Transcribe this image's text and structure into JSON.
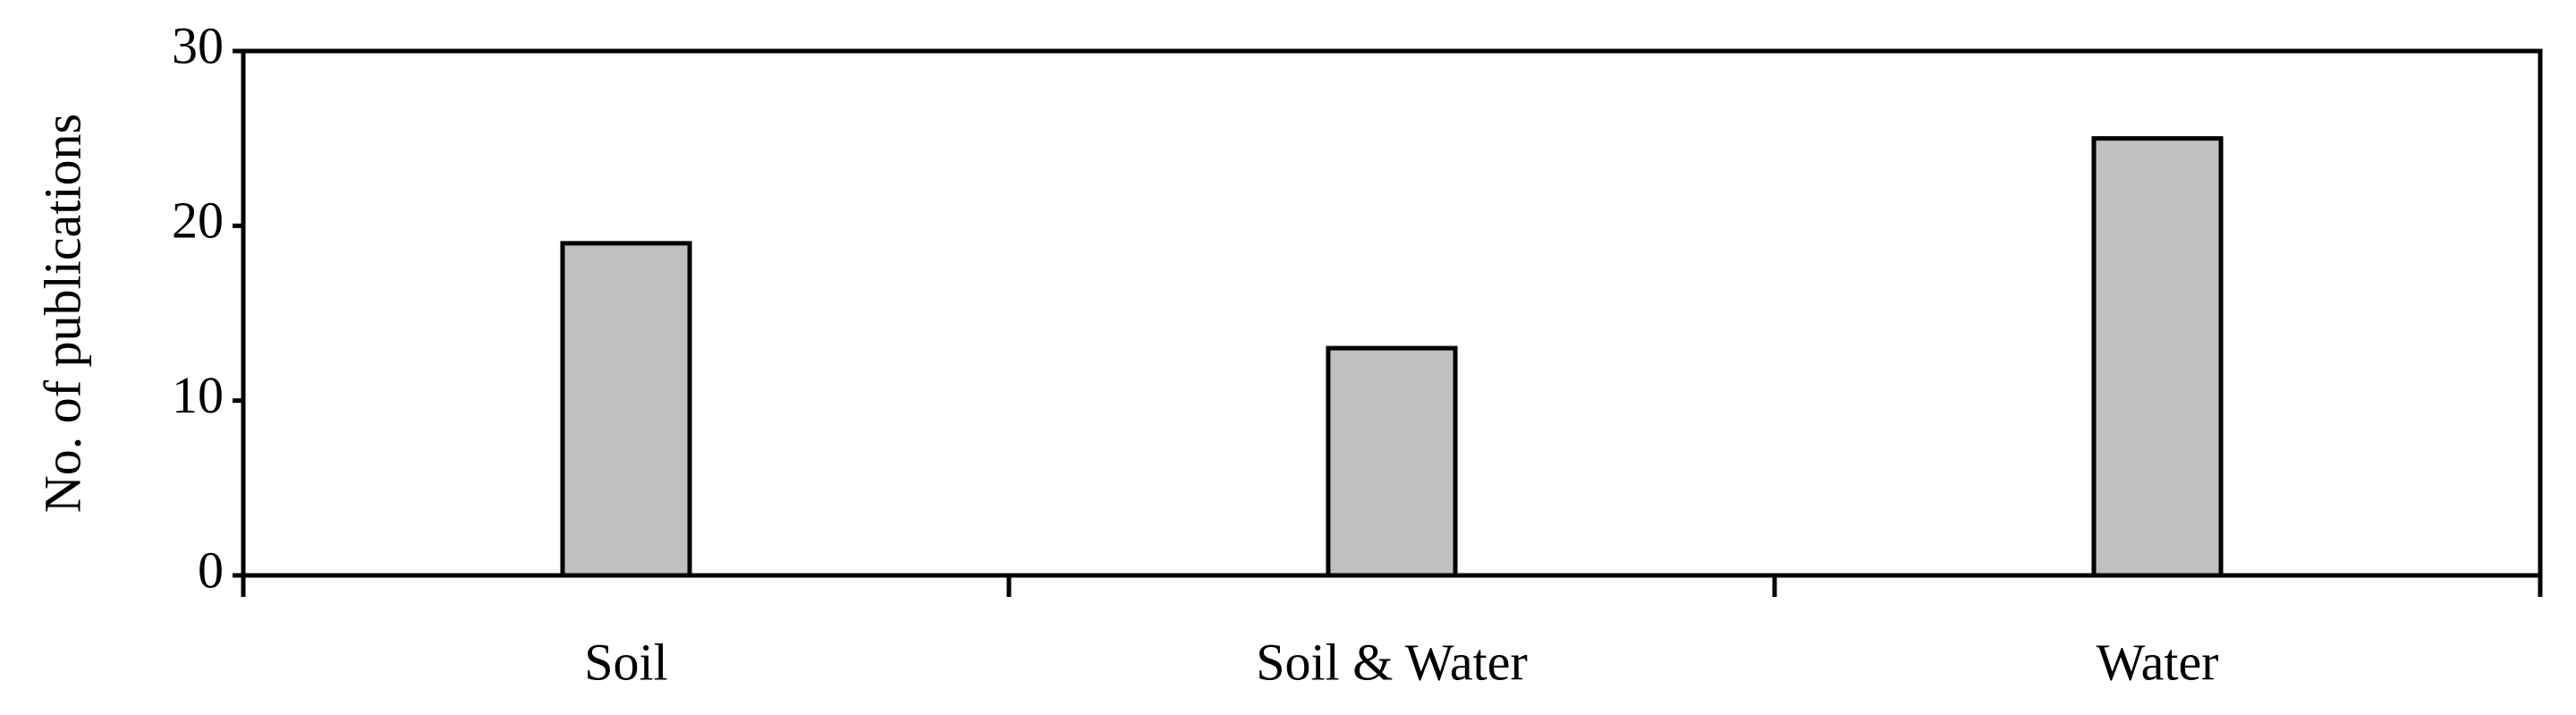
{
  "chart_data": {
    "type": "bar",
    "y_label": "No. of publications",
    "categories": [
      "Soil",
      "Soil & Water",
      "Water"
    ],
    "values": [
      19,
      13,
      25
    ],
    "color": "#c0c0c0",
    "ylim": [
      0,
      30
    ],
    "yticks": [
      0,
      10,
      20,
      30
    ],
    "grid": false
  }
}
